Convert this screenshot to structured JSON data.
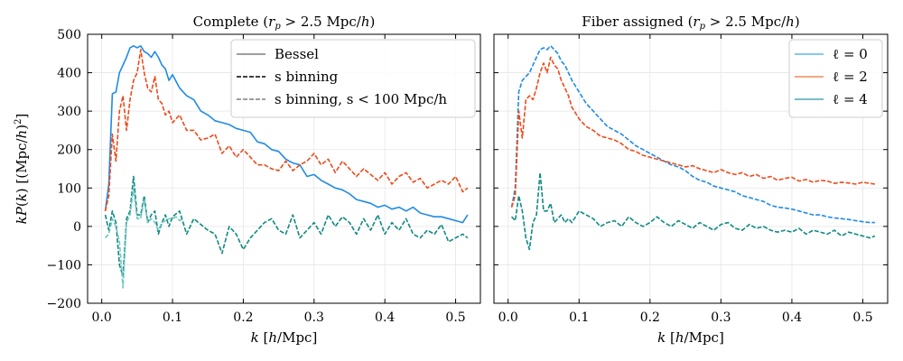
{
  "chart_data": [
    {
      "type": "line",
      "title": "Complete (r_p > 2.5 Mpc/h)",
      "title_html": [
        "Complete (",
        "r",
        "p",
        " > 2.5 Mpc/",
        "h",
        ")"
      ],
      "xlabel": "k  [h/Mpc]",
      "ylabel": "kP(k) [(Mpc/h)²]",
      "xlim": [
        -0.02,
        0.535
      ],
      "ylim": [
        -200,
        500
      ],
      "xticks": [
        0.0,
        0.1,
        0.2,
        0.3,
        0.4,
        0.5
      ],
      "xtick_labels": [
        "0.0",
        "0.1",
        "0.2",
        "0.3",
        "0.4",
        "0.5"
      ],
      "yticks": [
        -200,
        -100,
        0,
        100,
        200,
        300,
        400,
        500
      ],
      "ytick_labels": [
        "−200",
        "−100",
        "0",
        "100",
        "200",
        "300",
        "400",
        "500"
      ],
      "grid": true,
      "legend_position": "top-right",
      "legend": [
        {
          "label": "Bessel",
          "color": "#7f7f7f",
          "dash": "solid"
        },
        {
          "label": "s binning",
          "color": "#000000",
          "dash": "dashed"
        },
        {
          "label": "s binning, s < 100 Mpc/h",
          "color": "#7f7f7f",
          "dash": "dashed"
        }
      ],
      "series": [
        {
          "ell": 0,
          "color": "#1f8be6",
          "style": "solid",
          "x": [
            0.005,
            0.01,
            0.015,
            0.02,
            0.025,
            0.03,
            0.035,
            0.04,
            0.045,
            0.05,
            0.055,
            0.06,
            0.065,
            0.07,
            0.075,
            0.08,
            0.085,
            0.09,
            0.095,
            0.1,
            0.11,
            0.12,
            0.13,
            0.14,
            0.15,
            0.16,
            0.17,
            0.18,
            0.19,
            0.2,
            0.21,
            0.22,
            0.23,
            0.24,
            0.25,
            0.26,
            0.27,
            0.28,
            0.29,
            0.3,
            0.31,
            0.32,
            0.33,
            0.34,
            0.35,
            0.36,
            0.37,
            0.38,
            0.39,
            0.4,
            0.41,
            0.42,
            0.43,
            0.44,
            0.45,
            0.46,
            0.47,
            0.48,
            0.49,
            0.5,
            0.51,
            0.517
          ],
          "y": [
            40,
            110,
            345,
            350,
            400,
            420,
            440,
            465,
            470,
            465,
            470,
            455,
            450,
            440,
            455,
            440,
            420,
            410,
            380,
            395,
            360,
            340,
            330,
            300,
            290,
            275,
            270,
            265,
            255,
            250,
            245,
            220,
            215,
            200,
            195,
            175,
            165,
            160,
            130,
            135,
            120,
            110,
            100,
            95,
            85,
            70,
            65,
            60,
            50,
            55,
            45,
            50,
            40,
            50,
            35,
            30,
            25,
            25,
            20,
            15,
            10,
            30
          ]
        },
        {
          "ell": 2,
          "color": "#ee4a1a",
          "style": "dashed",
          "x": [
            0.005,
            0.01,
            0.015,
            0.02,
            0.025,
            0.03,
            0.035,
            0.04,
            0.045,
            0.05,
            0.055,
            0.06,
            0.065,
            0.07,
            0.075,
            0.08,
            0.085,
            0.09,
            0.095,
            0.1,
            0.11,
            0.12,
            0.13,
            0.14,
            0.15,
            0.16,
            0.17,
            0.18,
            0.19,
            0.2,
            0.21,
            0.22,
            0.23,
            0.24,
            0.25,
            0.26,
            0.27,
            0.28,
            0.29,
            0.3,
            0.31,
            0.32,
            0.33,
            0.34,
            0.35,
            0.36,
            0.37,
            0.38,
            0.39,
            0.4,
            0.41,
            0.42,
            0.43,
            0.44,
            0.45,
            0.46,
            0.47,
            0.48,
            0.49,
            0.5,
            0.51,
            0.517
          ],
          "y": [
            40,
            80,
            240,
            170,
            300,
            340,
            250,
            330,
            380,
            400,
            460,
            400,
            360,
            350,
            390,
            330,
            320,
            290,
            300,
            270,
            290,
            250,
            250,
            225,
            230,
            240,
            190,
            210,
            180,
            200,
            180,
            160,
            160,
            150,
            145,
            170,
            145,
            160,
            170,
            190,
            160,
            175,
            140,
            170,
            150,
            130,
            150,
            135,
            120,
            140,
            110,
            130,
            140,
            115,
            125,
            100,
            110,
            120,
            110,
            130,
            90,
            100
          ]
        },
        {
          "ell": 4,
          "color": "#0f8a82",
          "style": "dashed",
          "x": [
            0.005,
            0.01,
            0.015,
            0.02,
            0.025,
            0.03,
            0.035,
            0.04,
            0.045,
            0.05,
            0.055,
            0.06,
            0.065,
            0.07,
            0.075,
            0.08,
            0.085,
            0.09,
            0.095,
            0.1,
            0.11,
            0.12,
            0.13,
            0.14,
            0.15,
            0.16,
            0.17,
            0.18,
            0.19,
            0.2,
            0.21,
            0.22,
            0.23,
            0.24,
            0.25,
            0.26,
            0.27,
            0.28,
            0.29,
            0.3,
            0.31,
            0.32,
            0.33,
            0.34,
            0.35,
            0.36,
            0.37,
            0.38,
            0.39,
            0.4,
            0.41,
            0.42,
            0.43,
            0.44,
            0.45,
            0.46,
            0.47,
            0.48,
            0.49,
            0.5,
            0.51,
            0.517
          ],
          "y": [
            30,
            -10,
            40,
            10,
            -100,
            -130,
            20,
            40,
            130,
            30,
            30,
            80,
            10,
            30,
            40,
            -20,
            10,
            30,
            0,
            25,
            40,
            -20,
            20,
            5,
            -10,
            -20,
            -70,
            0,
            -20,
            -60,
            -30,
            -10,
            10,
            20,
            -10,
            -20,
            30,
            -30,
            -10,
            10,
            -20,
            30,
            0,
            25,
            10,
            -20,
            20,
            -10,
            30,
            -20,
            10,
            -10,
            20,
            -20,
            -30,
            -10,
            -20,
            5,
            -40,
            -30,
            -20,
            -30
          ]
        },
        {
          "ell": 4,
          "color": "#6fc7c0",
          "style": "dashed",
          "label": "s < 100 Mpc/h",
          "x": [
            0.005,
            0.01,
            0.015,
            0.02,
            0.025,
            0.03,
            0.035,
            0.04,
            0.045,
            0.05,
            0.055,
            0.06,
            0.065,
            0.07,
            0.075,
            0.08,
            0.085,
            0.09,
            0.095,
            0.1,
            0.105,
            0.11,
            0.115
          ],
          "y": [
            -30,
            -20,
            20,
            0,
            -40,
            -160,
            10,
            30,
            100,
            20,
            20,
            70,
            10,
            20,
            10,
            -10,
            10,
            15,
            20,
            20,
            25,
            15,
            20
          ]
        }
      ]
    },
    {
      "type": "line",
      "title": "Fiber assigned (r_p > 2.5 Mpc/h)",
      "title_html": [
        "Fiber assigned (",
        "r",
        "p",
        " > 2.5 Mpc/",
        "h",
        ")"
      ],
      "xlabel": "k  [h/Mpc]",
      "xlim": [
        -0.02,
        0.535
      ],
      "ylim": [
        -200,
        500
      ],
      "xticks": [
        0.0,
        0.1,
        0.2,
        0.3,
        0.4,
        0.5
      ],
      "xtick_labels": [
        "0.0",
        "0.1",
        "0.2",
        "0.3",
        "0.4",
        "0.5"
      ],
      "yticks": [
        -200,
        -100,
        0,
        100,
        200,
        300,
        400,
        500
      ],
      "grid": true,
      "legend_position": "top-right",
      "legend": [
        {
          "label": "ℓ = 0",
          "color": "#5fb7e8",
          "dash": "solid"
        },
        {
          "label": "ℓ = 2",
          "color": "#f08a5b",
          "dash": "solid"
        },
        {
          "label": "ℓ = 4",
          "color": "#4aa8b0",
          "dash": "solid"
        }
      ],
      "series": [
        {
          "ell": 0,
          "color": "#1f8be6",
          "style": "dashed",
          "x": [
            0.005,
            0.01,
            0.015,
            0.02,
            0.025,
            0.03,
            0.035,
            0.04,
            0.045,
            0.05,
            0.055,
            0.06,
            0.065,
            0.07,
            0.075,
            0.08,
            0.085,
            0.09,
            0.1,
            0.11,
            0.12,
            0.13,
            0.14,
            0.15,
            0.16,
            0.17,
            0.18,
            0.19,
            0.2,
            0.21,
            0.22,
            0.23,
            0.24,
            0.25,
            0.26,
            0.27,
            0.28,
            0.29,
            0.3,
            0.31,
            0.32,
            0.33,
            0.34,
            0.35,
            0.36,
            0.37,
            0.38,
            0.39,
            0.4,
            0.41,
            0.42,
            0.43,
            0.44,
            0.45,
            0.46,
            0.47,
            0.48,
            0.49,
            0.5,
            0.51,
            0.517
          ],
          "y": [
            50,
            100,
            350,
            380,
            390,
            400,
            420,
            440,
            460,
            465,
            460,
            470,
            460,
            450,
            430,
            420,
            400,
            380,
            350,
            320,
            300,
            280,
            260,
            250,
            240,
            225,
            210,
            200,
            190,
            180,
            170,
            160,
            155,
            145,
            130,
            120,
            115,
            105,
            100,
            95,
            90,
            80,
            75,
            70,
            65,
            55,
            50,
            48,
            45,
            40,
            35,
            30,
            30,
            25,
            22,
            20,
            18,
            15,
            12,
            10,
            10
          ]
        },
        {
          "ell": 2,
          "color": "#ee4a1a",
          "style": "dashed",
          "x": [
            0.005,
            0.01,
            0.015,
            0.02,
            0.025,
            0.03,
            0.035,
            0.04,
            0.045,
            0.05,
            0.055,
            0.06,
            0.065,
            0.07,
            0.075,
            0.08,
            0.085,
            0.09,
            0.1,
            0.11,
            0.12,
            0.13,
            0.14,
            0.15,
            0.16,
            0.17,
            0.18,
            0.19,
            0.2,
            0.21,
            0.22,
            0.23,
            0.24,
            0.25,
            0.26,
            0.27,
            0.28,
            0.29,
            0.3,
            0.31,
            0.32,
            0.33,
            0.34,
            0.35,
            0.36,
            0.37,
            0.38,
            0.39,
            0.4,
            0.41,
            0.42,
            0.43,
            0.44,
            0.45,
            0.46,
            0.47,
            0.48,
            0.49,
            0.5,
            0.51,
            0.517
          ],
          "y": [
            50,
            80,
            300,
            230,
            330,
            340,
            330,
            360,
            400,
            425,
            400,
            440,
            420,
            410,
            380,
            360,
            340,
            310,
            280,
            260,
            250,
            235,
            230,
            225,
            215,
            200,
            195,
            185,
            180,
            175,
            170,
            165,
            160,
            155,
            158,
            150,
            145,
            140,
            148,
            140,
            135,
            140,
            130,
            135,
            125,
            130,
            120,
            125,
            128,
            118,
            122,
            115,
            120,
            118,
            112,
            115,
            113,
            110,
            115,
            112,
            110
          ]
        },
        {
          "ell": 4,
          "color": "#0f8a82",
          "style": "dashed",
          "x": [
            0.005,
            0.01,
            0.015,
            0.02,
            0.025,
            0.03,
            0.035,
            0.04,
            0.045,
            0.05,
            0.055,
            0.06,
            0.065,
            0.07,
            0.075,
            0.08,
            0.085,
            0.09,
            0.1,
            0.11,
            0.12,
            0.13,
            0.14,
            0.15,
            0.16,
            0.17,
            0.18,
            0.19,
            0.2,
            0.21,
            0.22,
            0.23,
            0.24,
            0.25,
            0.26,
            0.27,
            0.28,
            0.29,
            0.3,
            0.31,
            0.32,
            0.33,
            0.34,
            0.35,
            0.36,
            0.37,
            0.38,
            0.39,
            0.4,
            0.41,
            0.42,
            0.43,
            0.44,
            0.45,
            0.46,
            0.47,
            0.48,
            0.49,
            0.5,
            0.51,
            0.517
          ],
          "y": [
            25,
            15,
            80,
            40,
            -30,
            -60,
            10,
            30,
            140,
            40,
            40,
            60,
            10,
            20,
            30,
            10,
            20,
            10,
            40,
            30,
            20,
            0,
            10,
            15,
            0,
            25,
            10,
            0,
            10,
            25,
            10,
            0,
            15,
            5,
            -5,
            10,
            0,
            -10,
            5,
            10,
            -5,
            -10,
            5,
            -5,
            0,
            -10,
            -15,
            -10,
            -15,
            -5,
            -20,
            -10,
            -15,
            -20,
            -10,
            -25,
            -15,
            -20,
            -25,
            -30,
            -25
          ]
        }
      ]
    }
  ]
}
